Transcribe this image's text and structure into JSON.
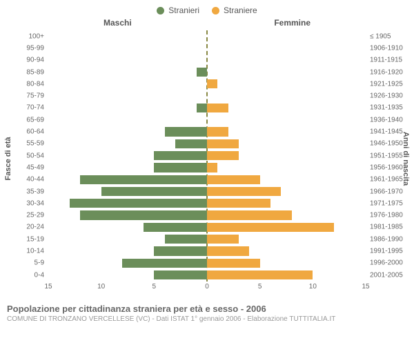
{
  "legend": {
    "items": [
      {
        "label": "Stranieri",
        "color": "#6b8e5a"
      },
      {
        "label": "Straniere",
        "color": "#f0a840"
      }
    ]
  },
  "chart": {
    "type": "population-pyramid",
    "header_left": "Maschi",
    "header_right": "Femmine",
    "yaxis_left_title": "Fasce di età",
    "yaxis_right_title": "Anni di nascita",
    "xmax": 15,
    "xticks": [
      15,
      10,
      5,
      0,
      5,
      10,
      15
    ],
    "bar_color_left": "#6b8e5a",
    "bar_color_right": "#f0a840",
    "background_color": "#ffffff",
    "centerline_color": "#888844",
    "rows": [
      {
        "age": "100+",
        "year": "≤ 1905",
        "m": 0,
        "f": 0
      },
      {
        "age": "95-99",
        "year": "1906-1910",
        "m": 0,
        "f": 0
      },
      {
        "age": "90-94",
        "year": "1911-1915",
        "m": 0,
        "f": 0
      },
      {
        "age": "85-89",
        "year": "1916-1920",
        "m": 1,
        "f": 0
      },
      {
        "age": "80-84",
        "year": "1921-1925",
        "m": 0,
        "f": 1
      },
      {
        "age": "75-79",
        "year": "1926-1930",
        "m": 0,
        "f": 0
      },
      {
        "age": "70-74",
        "year": "1931-1935",
        "m": 1,
        "f": 2
      },
      {
        "age": "65-69",
        "year": "1936-1940",
        "m": 0,
        "f": 0
      },
      {
        "age": "60-64",
        "year": "1941-1945",
        "m": 4,
        "f": 2
      },
      {
        "age": "55-59",
        "year": "1946-1950",
        "m": 3,
        "f": 3
      },
      {
        "age": "50-54",
        "year": "1951-1955",
        "m": 5,
        "f": 3
      },
      {
        "age": "45-49",
        "year": "1956-1960",
        "m": 5,
        "f": 1
      },
      {
        "age": "40-44",
        "year": "1961-1965",
        "m": 12,
        "f": 5
      },
      {
        "age": "35-39",
        "year": "1966-1970",
        "m": 10,
        "f": 7
      },
      {
        "age": "30-34",
        "year": "1971-1975",
        "m": 13,
        "f": 6
      },
      {
        "age": "25-29",
        "year": "1976-1980",
        "m": 12,
        "f": 8
      },
      {
        "age": "20-24",
        "year": "1981-1985",
        "m": 6,
        "f": 12
      },
      {
        "age": "15-19",
        "year": "1986-1990",
        "m": 4,
        "f": 3
      },
      {
        "age": "10-14",
        "year": "1991-1995",
        "m": 5,
        "f": 4
      },
      {
        "age": "5-9",
        "year": "1996-2000",
        "m": 8,
        "f": 5
      },
      {
        "age": "0-4",
        "year": "2001-2005",
        "m": 5,
        "f": 10
      }
    ]
  },
  "footer": {
    "title": "Popolazione per cittadinanza straniera per età e sesso - 2006",
    "subtitle": "COMUNE DI TRONZANO VERCELLESE (VC) - Dati ISTAT 1° gennaio 2006 - Elaborazione TUTTITALIA.IT"
  }
}
